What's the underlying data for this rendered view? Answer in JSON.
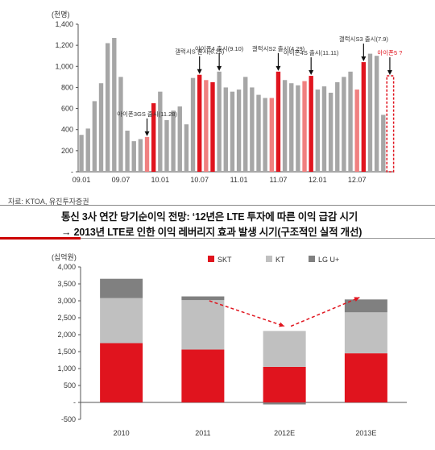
{
  "source": "자료: KTOA, 유진투자증권",
  "headline": {
    "line1": "통신 3사 연간 당기순이익 전망: ‘12년은 LTE 투자에 따른 이익 급감 시기",
    "line2": "→ 2013년 LTE로 인한 이익 레버리지 효과 발생 시기(구조적인 실적 개선)"
  },
  "colors": {
    "grey": "#a6a6a6",
    "red": "#e0141e",
    "pink": "#f08080",
    "kt": "#c0c0c0",
    "lgu": "#808080"
  },
  "chart_data": [
    {
      "type": "bar",
      "unit": "(천명)",
      "ylim": [
        0,
        1400
      ],
      "yticks": [
        {
          "v": 0,
          "label": "-"
        },
        {
          "v": 200,
          "label": "200"
        },
        {
          "v": 400,
          "label": "400"
        },
        {
          "v": 600,
          "label": "600"
        },
        {
          "v": 800,
          "label": "800"
        },
        {
          "v": 1000,
          "label": "1,000"
        },
        {
          "v": 1200,
          "label": "1,200"
        },
        {
          "v": 1400,
          "label": "1,400"
        }
      ],
      "xticks": [
        {
          "i": 0,
          "label": "09.01"
        },
        {
          "i": 6,
          "label": "09.07"
        },
        {
          "i": 12,
          "label": "10.01"
        },
        {
          "i": 18,
          "label": "10.07"
        },
        {
          "i": 24,
          "label": "11.01"
        },
        {
          "i": 30,
          "label": "11.07"
        },
        {
          "i": 36,
          "label": "12.01"
        },
        {
          "i": 42,
          "label": "12.07"
        }
      ],
      "values": [
        350,
        410,
        670,
        840,
        1220,
        1270,
        900,
        390,
        290,
        310,
        330,
        650,
        760,
        490,
        580,
        620,
        450,
        890,
        920,
        870,
        850,
        950,
        800,
        760,
        780,
        900,
        800,
        730,
        700,
        700,
        950,
        870,
        840,
        820,
        860,
        910,
        780,
        810,
        750,
        850,
        900,
        950,
        780,
        1040,
        1120,
        1100,
        540,
        910
      ],
      "kinds": [
        "g",
        "g",
        "g",
        "g",
        "g",
        "g",
        "g",
        "g",
        "g",
        "g",
        "p",
        "r",
        "g",
        "g",
        "g",
        "g",
        "g",
        "g",
        "r",
        "p",
        "r",
        "g",
        "g",
        "g",
        "g",
        "g",
        "g",
        "g",
        "g",
        "p",
        "r",
        "g",
        "g",
        "g",
        "p",
        "r",
        "g",
        "g",
        "g",
        "g",
        "g",
        "g",
        "p",
        "r",
        "g",
        "g",
        "g",
        "d"
      ],
      "annotations": [
        {
          "label": "아이폰3GS 출시(11.28)",
          "i": 10,
          "red": false
        },
        {
          "label": "갤럭시S 출시(6.25)",
          "i": 18,
          "red": false
        },
        {
          "label": "아이폰4 출시(9.10)",
          "i": 21,
          "red": false
        },
        {
          "label": "갤럭시S2 출시(4.29)",
          "i": 30,
          "red": false
        },
        {
          "label": "아이폰4S 출시(11.11)",
          "i": 35,
          "red": false
        },
        {
          "label": "갤럭시S3 출시(7.9)",
          "i": 43,
          "red": false
        },
        {
          "label": "아이폰5 ?",
          "i": 47,
          "red": true
        }
      ]
    },
    {
      "type": "stacked-bar",
      "unit": "(십억원)",
      "ylim": [
        -500,
        4000
      ],
      "yticks": [
        "-500",
        "-",
        "500",
        "1,000",
        "1,500",
        "2,000",
        "2,500",
        "3,000",
        "3,500",
        "4,000"
      ],
      "categories": [
        "2010",
        "2011",
        "2012E",
        "2013E"
      ],
      "series": [
        {
          "name": "SKT",
          "values": [
            1750,
            1560,
            1050,
            1450
          ]
        },
        {
          "name": "KT",
          "values": [
            1330,
            1460,
            1060,
            1210
          ]
        },
        {
          "name": "LG U+",
          "values": [
            570,
            110,
            -60,
            380
          ]
        }
      ]
    }
  ]
}
